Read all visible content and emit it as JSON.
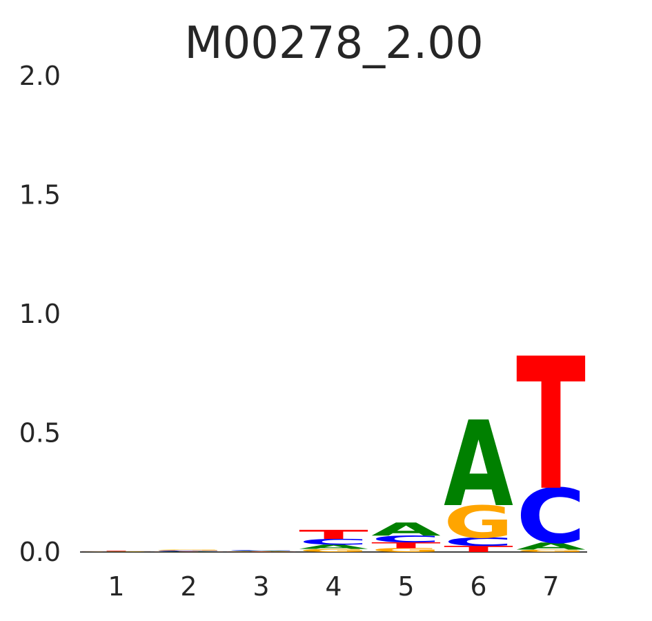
{
  "chart_data": {
    "type": "sequence-logo",
    "title": "M00278_2.00",
    "xlabel": "",
    "ylabel": "",
    "ylim": [
      0,
      2
    ],
    "yticks": [
      "0.0",
      "0.5",
      "1.0",
      "1.5",
      "2.0"
    ],
    "positions": [
      "1",
      "2",
      "3",
      "4",
      "5",
      "6",
      "7"
    ],
    "grid": false,
    "legend": "none",
    "colors": {
      "A": "#008000",
      "C": "#0000ff",
      "G": "#ffa500",
      "T": "#ff0000"
    },
    "stacks": [
      [
        {
          "letter": "A",
          "height": 0.001
        },
        {
          "letter": "C",
          "height": 0.001
        },
        {
          "letter": "G",
          "height": 0.001
        },
        {
          "letter": "T",
          "height": 0.002
        }
      ],
      [
        {
          "letter": "T",
          "height": 0.001
        },
        {
          "letter": "A",
          "height": 0.002
        },
        {
          "letter": "C",
          "height": 0.003
        },
        {
          "letter": "G",
          "height": 0.004
        }
      ],
      [
        {
          "letter": "T",
          "height": 0.001
        },
        {
          "letter": "G",
          "height": 0.002
        },
        {
          "letter": "A",
          "height": 0.002
        },
        {
          "letter": "C",
          "height": 0.003
        }
      ],
      [
        {
          "letter": "G",
          "height": 0.013
        },
        {
          "letter": "A",
          "height": 0.018
        },
        {
          "letter": "C",
          "height": 0.024
        },
        {
          "letter": "T",
          "height": 0.038
        }
      ],
      [
        {
          "letter": "G",
          "height": 0.016
        },
        {
          "letter": "T",
          "height": 0.025
        },
        {
          "letter": "C",
          "height": 0.028
        },
        {
          "letter": "A",
          "height": 0.055
        }
      ],
      [
        {
          "letter": "T",
          "height": 0.026
        },
        {
          "letter": "C",
          "height": 0.035
        },
        {
          "letter": "G",
          "height": 0.136
        },
        {
          "letter": "A",
          "height": 0.36
        }
      ],
      [
        {
          "letter": "G",
          "height": 0.01
        },
        {
          "letter": "A",
          "height": 0.03
        },
        {
          "letter": "C",
          "height": 0.23
        },
        {
          "letter": "T",
          "height": 0.555
        }
      ]
    ]
  }
}
